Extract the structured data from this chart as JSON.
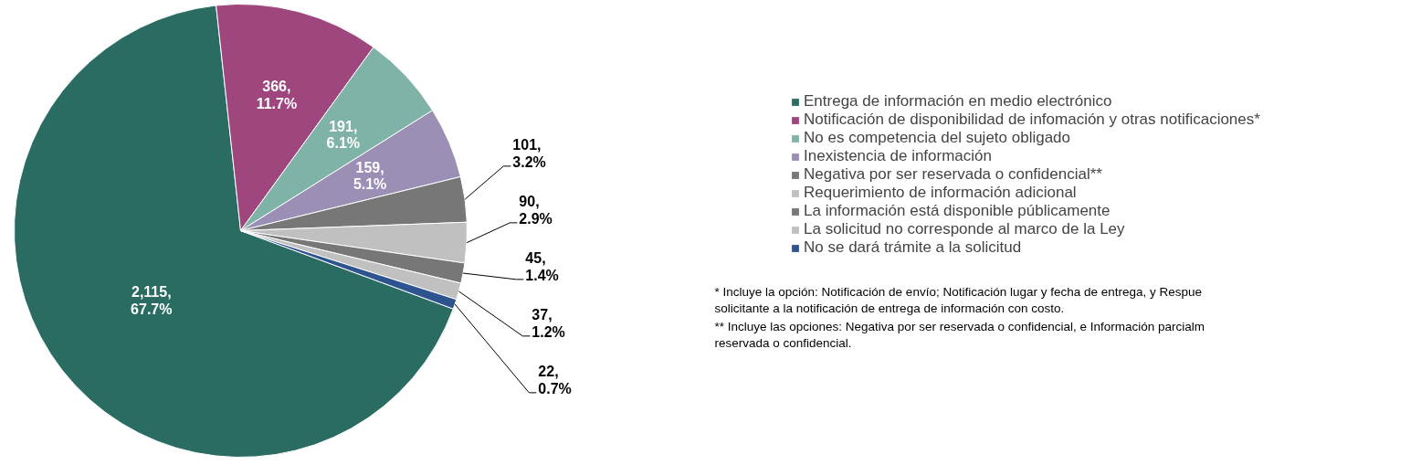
{
  "chart_data": {
    "type": "pie",
    "categories": [
      "Entrega de información en medio electrónico",
      "Notificación de disponibilidad de infomación y otras notificaciones*",
      "No es competencia del sujeto obligado",
      "Inexistencia de información",
      "Negativa por ser reservada o confidencial**",
      "Requerimiento de información adicional",
      "La información está disponible públicamente",
      "La solicitud no corresponde al marco de la Ley",
      "No se dará trámite a la solicitud"
    ],
    "values": [
      2115,
      366,
      191,
      159,
      101,
      90,
      45,
      37,
      22
    ],
    "colors": [
      "#2a6b62",
      "#a0467f",
      "#7fb3a8",
      "#9b8fb5",
      "#777777",
      "#c0c0c0",
      "#777777",
      "#c0c0c0",
      "#2e5490"
    ],
    "value_labels": [
      "2,115,\n67.7%",
      "366,\n11.7%",
      "191,\n6.1%",
      "159,\n5.1%",
      "101,\n3.2%",
      "90,\n2.9%",
      "45,\n1.4%",
      "37,\n1.2%",
      "22,\n0.7%"
    ],
    "legend": "right",
    "annotations": [
      "*  Incluye la opción: Notificación de envío;  Notificación lugar y fecha de entrega, y Respue\nsolicitante a la notificación de entrega de información con costo.",
      "** Incluye las opciones: Negativa por ser reservada o confidencial, e Información parcialm\nreservada o confidencial."
    ]
  }
}
